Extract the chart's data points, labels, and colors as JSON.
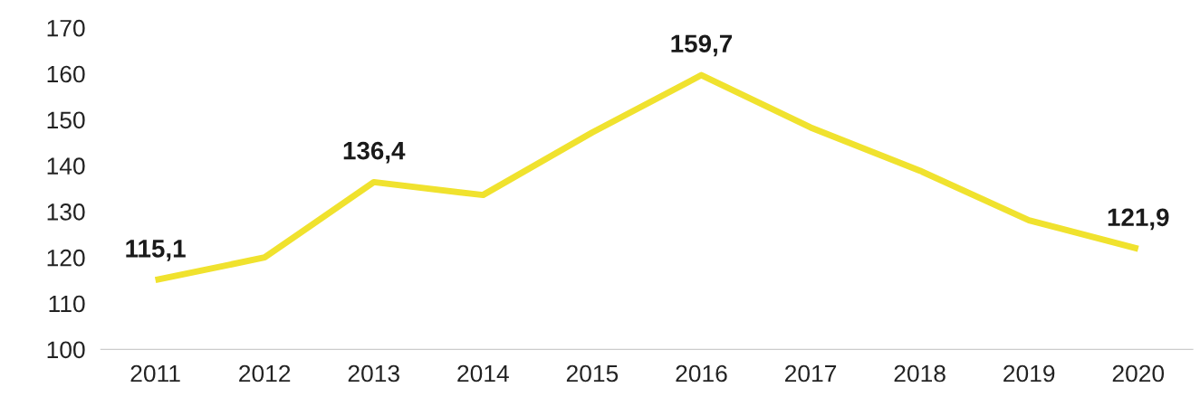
{
  "chart_data": {
    "type": "line",
    "categories": [
      "2011",
      "2012",
      "2013",
      "2014",
      "2015",
      "2016",
      "2017",
      "2018",
      "2019",
      "2020"
    ],
    "series": [
      {
        "color": "#f0e22e",
        "values": [
          115.1,
          120.0,
          136.4,
          133.6,
          147.2,
          159.7,
          148.3,
          138.9,
          128.1,
          121.9
        ],
        "value_labels": [
          "115,1",
          null,
          "136,4",
          null,
          null,
          "159,7",
          null,
          null,
          null,
          "121,9"
        ]
      }
    ],
    "ylim": [
      100,
      170
    ],
    "yticks": [
      100,
      110,
      120,
      130,
      140,
      150,
      160,
      170
    ],
    "grid": false,
    "legend": false,
    "marker": "none",
    "line_style": "solid"
  }
}
